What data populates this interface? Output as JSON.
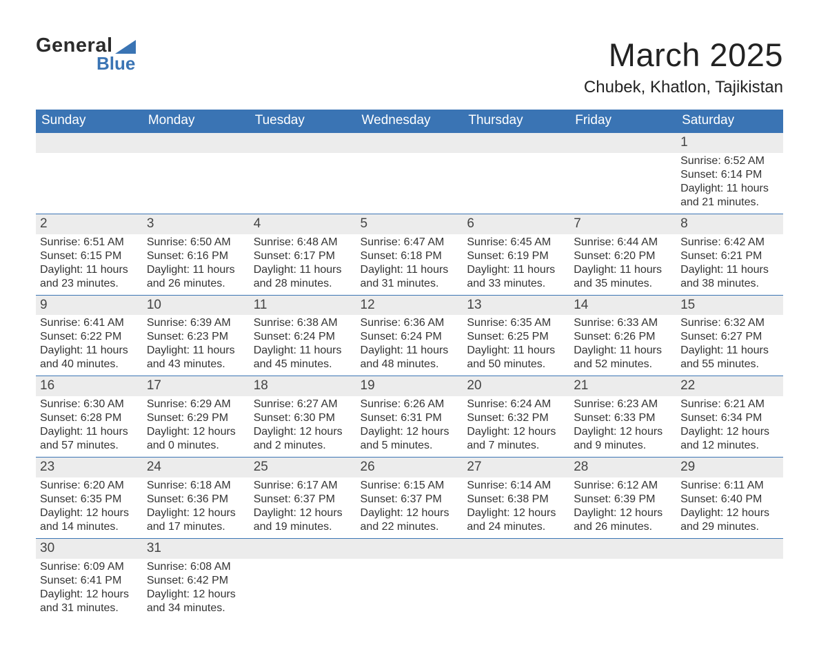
{
  "logo": {
    "word1": "General",
    "word2": "Blue",
    "accent": "#3a74b4"
  },
  "title": "March 2025",
  "location": "Chubek, Khatlon, Tajikistan",
  "weekdays": [
    "Sunday",
    "Monday",
    "Tuesday",
    "Wednesday",
    "Thursday",
    "Friday",
    "Saturday"
  ],
  "colors": {
    "header_bg": "#3a74b4",
    "header_text": "#ffffff",
    "daynum_bg": "#ececec",
    "row_border": "#3a74b4",
    "text": "#333333",
    "page_bg": "#ffffff"
  },
  "font": {
    "family": "Arial",
    "title_size": 47,
    "location_size": 24,
    "weekday_size": 19,
    "daynum_size": 19,
    "body_size": 16
  },
  "first_day_column": 6,
  "days": [
    {
      "n": 1,
      "sunrise": "6:52 AM",
      "sunset": "6:14 PM",
      "dl_h": 11,
      "dl_m": 21
    },
    {
      "n": 2,
      "sunrise": "6:51 AM",
      "sunset": "6:15 PM",
      "dl_h": 11,
      "dl_m": 23
    },
    {
      "n": 3,
      "sunrise": "6:50 AM",
      "sunset": "6:16 PM",
      "dl_h": 11,
      "dl_m": 26
    },
    {
      "n": 4,
      "sunrise": "6:48 AM",
      "sunset": "6:17 PM",
      "dl_h": 11,
      "dl_m": 28
    },
    {
      "n": 5,
      "sunrise": "6:47 AM",
      "sunset": "6:18 PM",
      "dl_h": 11,
      "dl_m": 31
    },
    {
      "n": 6,
      "sunrise": "6:45 AM",
      "sunset": "6:19 PM",
      "dl_h": 11,
      "dl_m": 33
    },
    {
      "n": 7,
      "sunrise": "6:44 AM",
      "sunset": "6:20 PM",
      "dl_h": 11,
      "dl_m": 35
    },
    {
      "n": 8,
      "sunrise": "6:42 AM",
      "sunset": "6:21 PM",
      "dl_h": 11,
      "dl_m": 38
    },
    {
      "n": 9,
      "sunrise": "6:41 AM",
      "sunset": "6:22 PM",
      "dl_h": 11,
      "dl_m": 40
    },
    {
      "n": 10,
      "sunrise": "6:39 AM",
      "sunset": "6:23 PM",
      "dl_h": 11,
      "dl_m": 43
    },
    {
      "n": 11,
      "sunrise": "6:38 AM",
      "sunset": "6:24 PM",
      "dl_h": 11,
      "dl_m": 45
    },
    {
      "n": 12,
      "sunrise": "6:36 AM",
      "sunset": "6:24 PM",
      "dl_h": 11,
      "dl_m": 48
    },
    {
      "n": 13,
      "sunrise": "6:35 AM",
      "sunset": "6:25 PM",
      "dl_h": 11,
      "dl_m": 50
    },
    {
      "n": 14,
      "sunrise": "6:33 AM",
      "sunset": "6:26 PM",
      "dl_h": 11,
      "dl_m": 52
    },
    {
      "n": 15,
      "sunrise": "6:32 AM",
      "sunset": "6:27 PM",
      "dl_h": 11,
      "dl_m": 55
    },
    {
      "n": 16,
      "sunrise": "6:30 AM",
      "sunset": "6:28 PM",
      "dl_h": 11,
      "dl_m": 57
    },
    {
      "n": 17,
      "sunrise": "6:29 AM",
      "sunset": "6:29 PM",
      "dl_h": 12,
      "dl_m": 0
    },
    {
      "n": 18,
      "sunrise": "6:27 AM",
      "sunset": "6:30 PM",
      "dl_h": 12,
      "dl_m": 2
    },
    {
      "n": 19,
      "sunrise": "6:26 AM",
      "sunset": "6:31 PM",
      "dl_h": 12,
      "dl_m": 5
    },
    {
      "n": 20,
      "sunrise": "6:24 AM",
      "sunset": "6:32 PM",
      "dl_h": 12,
      "dl_m": 7
    },
    {
      "n": 21,
      "sunrise": "6:23 AM",
      "sunset": "6:33 PM",
      "dl_h": 12,
      "dl_m": 9
    },
    {
      "n": 22,
      "sunrise": "6:21 AM",
      "sunset": "6:34 PM",
      "dl_h": 12,
      "dl_m": 12
    },
    {
      "n": 23,
      "sunrise": "6:20 AM",
      "sunset": "6:35 PM",
      "dl_h": 12,
      "dl_m": 14
    },
    {
      "n": 24,
      "sunrise": "6:18 AM",
      "sunset": "6:36 PM",
      "dl_h": 12,
      "dl_m": 17
    },
    {
      "n": 25,
      "sunrise": "6:17 AM",
      "sunset": "6:37 PM",
      "dl_h": 12,
      "dl_m": 19
    },
    {
      "n": 26,
      "sunrise": "6:15 AM",
      "sunset": "6:37 PM",
      "dl_h": 12,
      "dl_m": 22
    },
    {
      "n": 27,
      "sunrise": "6:14 AM",
      "sunset": "6:38 PM",
      "dl_h": 12,
      "dl_m": 24
    },
    {
      "n": 28,
      "sunrise": "6:12 AM",
      "sunset": "6:39 PM",
      "dl_h": 12,
      "dl_m": 26
    },
    {
      "n": 29,
      "sunrise": "6:11 AM",
      "sunset": "6:40 PM",
      "dl_h": 12,
      "dl_m": 29
    },
    {
      "n": 30,
      "sunrise": "6:09 AM",
      "sunset": "6:41 PM",
      "dl_h": 12,
      "dl_m": 31
    },
    {
      "n": 31,
      "sunrise": "6:08 AM",
      "sunset": "6:42 PM",
      "dl_h": 12,
      "dl_m": 34
    }
  ],
  "labels": {
    "sunrise": "Sunrise: ",
    "sunset": "Sunset: ",
    "daylight1": "Daylight: ",
    "daylight2": " hours and ",
    "daylight3": " minutes."
  }
}
